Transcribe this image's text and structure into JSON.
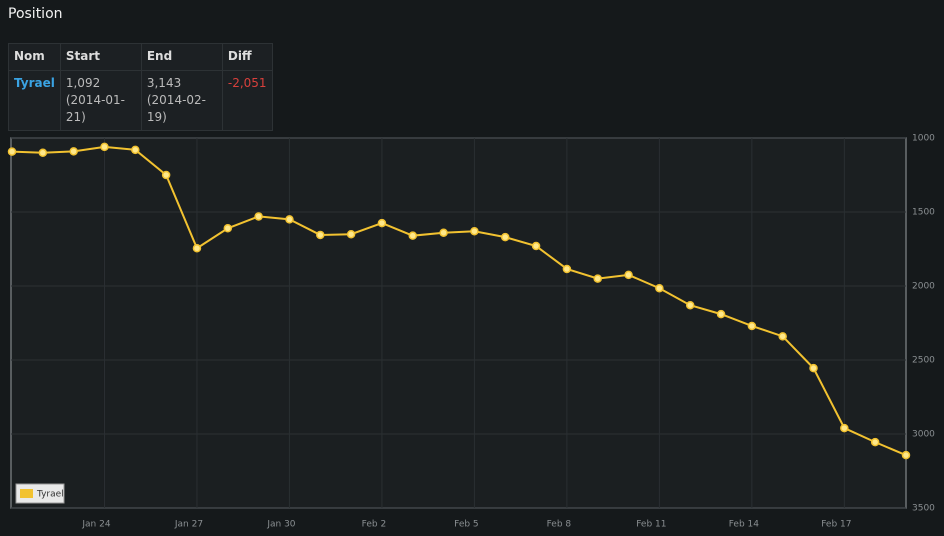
{
  "header": {
    "title": "Position"
  },
  "table": {
    "columns": [
      "Nom",
      "Start",
      "End",
      "Diff"
    ],
    "rows": [
      [
        "Tyrael",
        "1,092 (2014-01-21)",
        "3,143 (2014-02-19)",
        "-2,051"
      ]
    ]
  },
  "chart_data": {
    "type": "line",
    "categories": [
      null,
      null,
      null,
      "Jan 24",
      null,
      null,
      "Jan 27",
      null,
      null,
      "Jan 30",
      null,
      null,
      "Feb 2",
      null,
      null,
      "Feb 5",
      null,
      null,
      "Feb 8",
      null,
      null,
      "Feb 11",
      null,
      null,
      "Feb 14",
      null,
      null,
      "Feb 17",
      null,
      null
    ],
    "series": [
      {
        "name": "Tyrael",
        "color": "#f2c230",
        "values": [
          1092,
          1100,
          1090,
          1060,
          1080,
          1250,
          1745,
          1610,
          1530,
          1550,
          1655,
          1650,
          1575,
          1660,
          1640,
          1630,
          1670,
          1730,
          1885,
          1950,
          1925,
          2015,
          2130,
          2190,
          2270,
          2340,
          2555,
          2960,
          3055,
          3143
        ]
      }
    ],
    "ylim": [
      3500,
      1000
    ],
    "yticks": [
      1000,
      1500,
      2000,
      2500,
      3000,
      3500
    ],
    "grid": true,
    "legend": "lower left"
  }
}
